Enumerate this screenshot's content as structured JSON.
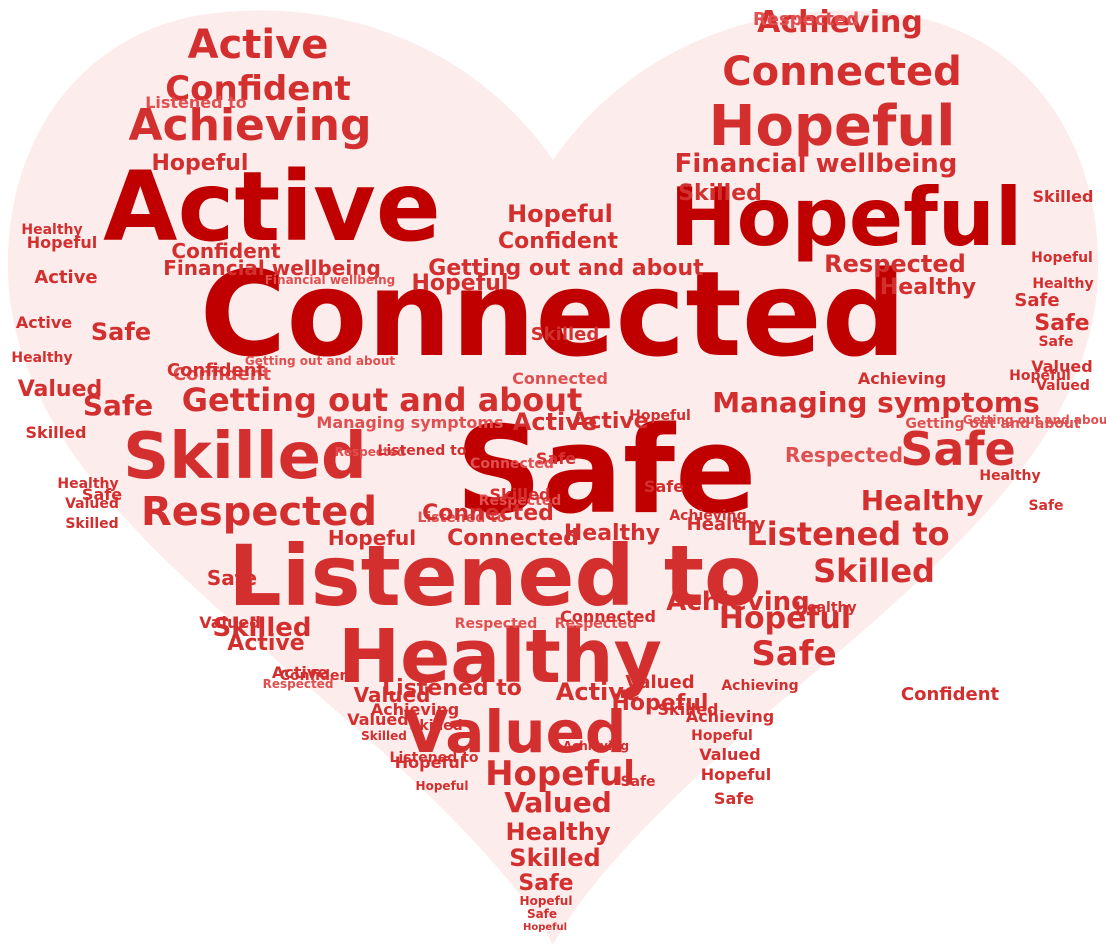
{
  "colors": {
    "heart_fill": "#fcecec",
    "dark_red": "#c00000",
    "mid_red": "#d32f2f",
    "light_red": "#e05050"
  },
  "words": [
    {
      "text": "Connected"
    },
    {
      "text": "Safe"
    },
    {
      "text": "Active"
    },
    {
      "text": "Hopeful"
    },
    {
      "text": "Listened to"
    },
    {
      "text": "Healthy"
    },
    {
      "text": "Skilled"
    },
    {
      "text": "Hopeful"
    },
    {
      "text": "Valued"
    },
    {
      "text": "Achieving"
    },
    {
      "text": "Connected"
    },
    {
      "text": "Respected"
    },
    {
      "text": "Getting out and about"
    },
    {
      "text": "Managing symptoms"
    },
    {
      "text": "Financial wellbeing"
    },
    {
      "text": "Active"
    },
    {
      "text": "Confident"
    },
    {
      "text": "Safe"
    },
    {
      "text": "Hopeful"
    },
    {
      "text": "Hopeful"
    },
    {
      "text": "Healthy"
    },
    {
      "text": "Skilled"
    },
    {
      "text": "Listened to"
    },
    {
      "text": "Safe"
    },
    {
      "text": "Getting out and about"
    },
    {
      "text": "Respected"
    },
    {
      "text": "Skilled"
    },
    {
      "text": "Achieving"
    },
    {
      "text": "Hopeful"
    },
    {
      "text": "Confident"
    },
    {
      "text": "Financial wellbeing"
    },
    {
      "text": "Hopeful"
    },
    {
      "text": "Respected"
    },
    {
      "text": "Valued"
    },
    {
      "text": "Healthy"
    },
    {
      "text": "Skilled"
    },
    {
      "text": "Safe"
    },
    {
      "text": "Active"
    },
    {
      "text": "Confident"
    },
    {
      "text": "Listened to"
    },
    {
      "text": "Valued"
    },
    {
      "text": "Hopeful"
    },
    {
      "text": "Safe"
    },
    {
      "text": "Connected"
    },
    {
      "text": "Skilled"
    },
    {
      "text": "Hopeful"
    },
    {
      "text": "Achieving"
    },
    {
      "text": "Active"
    },
    {
      "text": "Healthy"
    },
    {
      "text": "Respected"
    },
    {
      "text": "Listened to"
    },
    {
      "text": "Respected"
    },
    {
      "text": "Safe"
    },
    {
      "text": "Healthy"
    },
    {
      "text": "Managing symptoms"
    },
    {
      "text": "Connected"
    },
    {
      "text": "Confident"
    },
    {
      "text": "Getting out and about"
    },
    {
      "text": "Safe"
    },
    {
      "text": "Skilled"
    },
    {
      "text": "Safe"
    },
    {
      "text": "Valued"
    },
    {
      "text": "Active"
    },
    {
      "text": "Hopeful"
    },
    {
      "text": "Healthy"
    },
    {
      "text": "Active"
    },
    {
      "text": "Valued"
    },
    {
      "text": "Healthy"
    },
    {
      "text": "Skilled"
    },
    {
      "text": "Safe"
    },
    {
      "text": "Confident"
    },
    {
      "text": "Valued"
    },
    {
      "text": "Healthy"
    },
    {
      "text": "Hopeful"
    },
    {
      "text": "Skilled"
    },
    {
      "text": "Achieving"
    },
    {
      "text": "Safe"
    },
    {
      "text": "Confident"
    },
    {
      "text": "Safe"
    },
    {
      "text": "Hopeful"
    },
    {
      "text": "Healthy"
    },
    {
      "text": "Safe"
    },
    {
      "text": "Valued"
    },
    {
      "text": "Active"
    },
    {
      "text": "Hopeful"
    },
    {
      "text": "Achieving"
    },
    {
      "text": "Valued"
    },
    {
      "text": "Connected"
    },
    {
      "text": "Respected"
    },
    {
      "text": "Listened to"
    },
    {
      "text": "Skilled"
    },
    {
      "text": "Achieving"
    },
    {
      "text": "Safe"
    },
    {
      "text": "Skilled"
    },
    {
      "text": "Financial wellbeing"
    },
    {
      "text": "Getting out and about"
    },
    {
      "text": "Hopeful"
    },
    {
      "text": "Respected"
    },
    {
      "text": "Listened to"
    },
    {
      "text": "Confident"
    },
    {
      "text": "Active"
    },
    {
      "text": "Connected"
    },
    {
      "text": "Hopeful"
    },
    {
      "text": "Healthy"
    },
    {
      "text": "Achieving"
    },
    {
      "text": "Valued"
    },
    {
      "text": "Safe"
    },
    {
      "text": "Getting out and about"
    },
    {
      "text": "Respected"
    },
    {
      "text": "Hopeful"
    },
    {
      "text": "Healthy"
    },
    {
      "text": "Achieving"
    },
    {
      "text": "Hopeful"
    },
    {
      "text": "Connected"
    },
    {
      "text": "Respected"
    },
    {
      "text": "Listened to"
    },
    {
      "text": "Skilled"
    },
    {
      "text": "Hopeful"
    },
    {
      "text": "Active"
    },
    {
      "text": "Safe"
    },
    {
      "text": "Valued"
    },
    {
      "text": "Skilled"
    },
    {
      "text": "Achieving"
    },
    {
      "text": "Hopeful"
    },
    {
      "text": "Safe"
    },
    {
      "text": "Healthy"
    },
    {
      "text": "Valued"
    },
    {
      "text": "Skilled"
    },
    {
      "text": "Safe"
    },
    {
      "text": "Hopeful"
    },
    {
      "text": "Healthy"
    }
  ]
}
